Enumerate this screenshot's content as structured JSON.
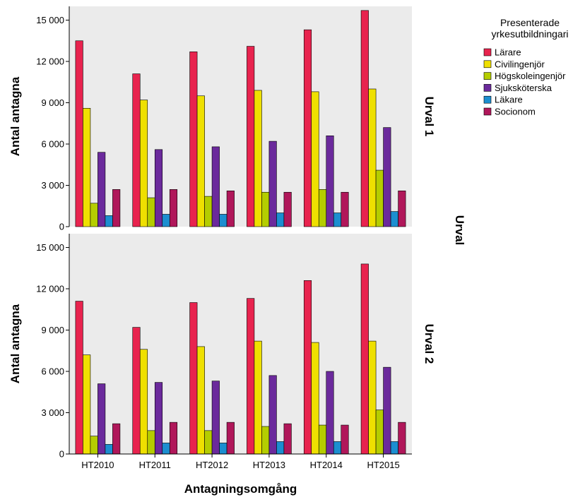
{
  "chart_data": {
    "type": "bar",
    "xlabel": "Antagningsomgång",
    "ylabel": "Antal antagna",
    "facet_label": "Urval",
    "categories": [
      "HT2010",
      "HT2011",
      "HT2012",
      "HT2013",
      "HT2014",
      "HT2015"
    ],
    "ylim": [
      0,
      16000
    ],
    "yticks": [
      0,
      3000,
      6000,
      9000,
      12000,
      15000
    ],
    "ytick_labels": [
      "0",
      "3 000",
      "6 000",
      "9 000",
      "12 000",
      "15 000"
    ],
    "legend": {
      "title_lines": [
        "Presenterade",
        "yrkesutbildningari"
      ],
      "placement": "right"
    },
    "series_colors": [
      "#e8234e",
      "#efe000",
      "#b5cd00",
      "#6b2a9c",
      "#1c8ed0",
      "#b0175a"
    ],
    "panels": [
      {
        "label": "Urval 1",
        "series": [
          {
            "name": "Lärare",
            "values": [
              13500,
              11100,
              12700,
              13100,
              14300,
              15700
            ]
          },
          {
            "name": "Civilingenjör",
            "values": [
              8600,
              9200,
              9500,
              9900,
              9800,
              10000
            ]
          },
          {
            "name": "Högskoleingenjör",
            "values": [
              1700,
              2100,
              2200,
              2500,
              2700,
              4100
            ]
          },
          {
            "name": "Sjuksköterska",
            "values": [
              5400,
              5600,
              5800,
              6200,
              6600,
              7200
            ]
          },
          {
            "name": "Läkare",
            "values": [
              800,
              900,
              900,
              1000,
              1000,
              1100
            ]
          },
          {
            "name": "Socionom",
            "values": [
              2700,
              2700,
              2600,
              2500,
              2500,
              2600
            ]
          }
        ]
      },
      {
        "label": "Urval 2",
        "series": [
          {
            "name": "Lärare",
            "values": [
              11100,
              9200,
              11000,
              11300,
              12600,
              13800
            ]
          },
          {
            "name": "Civilingenjör",
            "values": [
              7200,
              7600,
              7800,
              8200,
              8100,
              8200
            ]
          },
          {
            "name": "Högskoleingenjör",
            "values": [
              1300,
              1700,
              1700,
              2000,
              2100,
              3200
            ]
          },
          {
            "name": "Sjuksköterska",
            "values": [
              5100,
              5200,
              5300,
              5700,
              6000,
              6300
            ]
          },
          {
            "name": "Läkare",
            "values": [
              700,
              800,
              800,
              900,
              900,
              900
            ]
          },
          {
            "name": "Socionom",
            "values": [
              2200,
              2300,
              2300,
              2200,
              2100,
              2300
            ]
          }
        ]
      }
    ]
  }
}
